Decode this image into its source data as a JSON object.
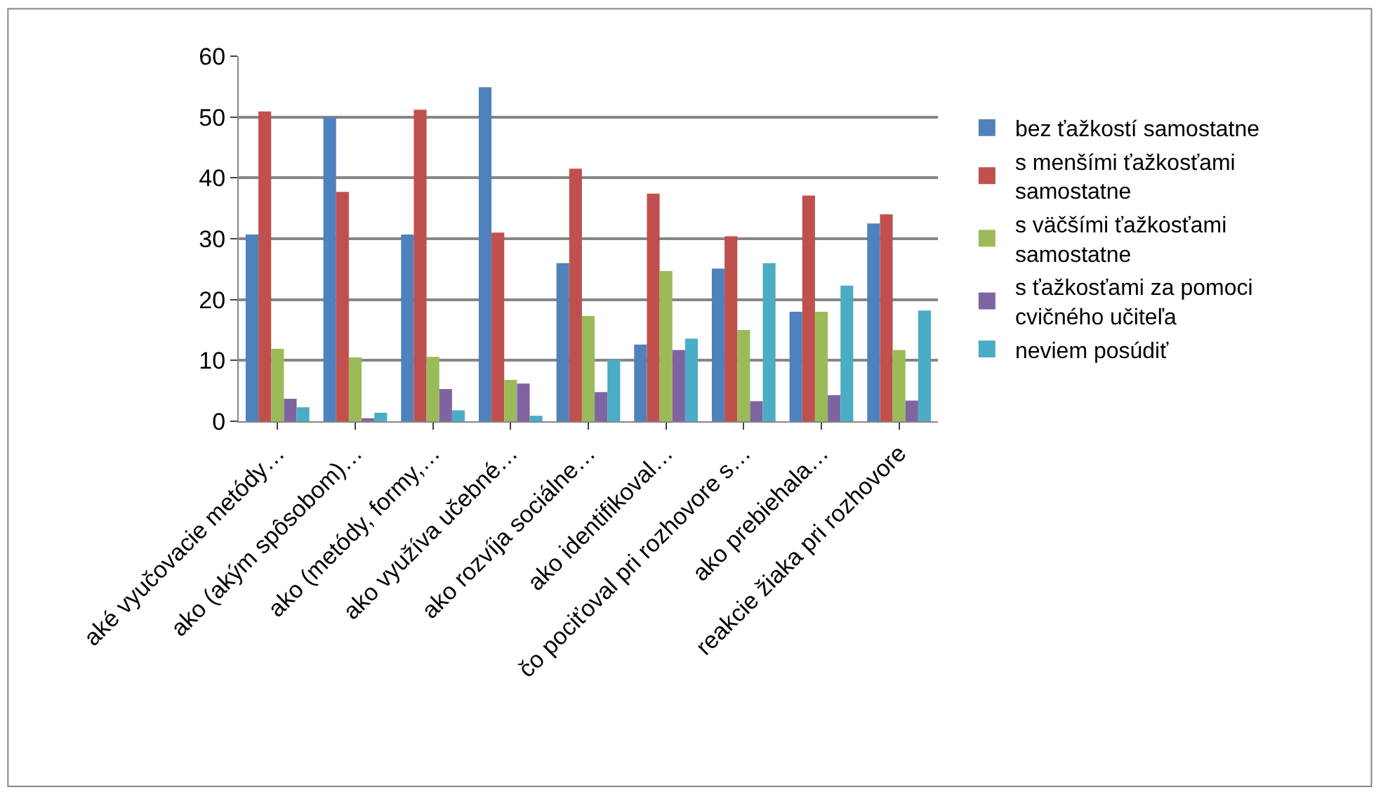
{
  "chart_data": {
    "type": "bar",
    "categories": [
      "aké vyučovacie metódy…",
      "ako (akým spôsobom)…",
      "ako (metódy, formy,…",
      "ako využíva učebné…",
      "ako rozvíja sociálne…",
      "ako identifikoval…",
      "čo pociťoval pri rozhovore s…",
      "ako prebiehala…",
      "reakcie žiaka pri rozhovore"
    ],
    "series": [
      {
        "name": "bez ťažkostí samostatne",
        "color": "#4f81bd",
        "values": [
          30.7,
          49.9,
          30.7,
          54.9,
          26.0,
          12.6,
          25.1,
          18.0,
          32.5
        ]
      },
      {
        "name": "s menšími ťažkosťami samostatne",
        "color": "#c0504d",
        "values": [
          50.9,
          37.7,
          51.2,
          31.0,
          41.5,
          37.4,
          30.4,
          37.1,
          34.0
        ]
      },
      {
        "name": "s väčšími ťažkosťami samostatne",
        "color": "#9bbb59",
        "values": [
          11.9,
          10.5,
          10.6,
          6.8,
          17.3,
          24.7,
          15.0,
          18.0,
          11.7
        ]
      },
      {
        "name": "s ťažkosťami za pomoci cvičného učiteľa",
        "color": "#8064a2",
        "values": [
          3.7,
          0.5,
          5.3,
          6.2,
          4.8,
          11.7,
          3.3,
          4.3,
          3.4
        ]
      },
      {
        "name": "neviem posúdiť",
        "color": "#4bacc6",
        "values": [
          2.3,
          1.4,
          1.8,
          0.9,
          10.1,
          13.6,
          26.0,
          22.3,
          18.2
        ]
      }
    ],
    "ylim": [
      0,
      60
    ],
    "yticks": [
      0,
      10,
      20,
      30,
      40,
      50,
      60
    ],
    "grid": "y",
    "legend": "right"
  }
}
